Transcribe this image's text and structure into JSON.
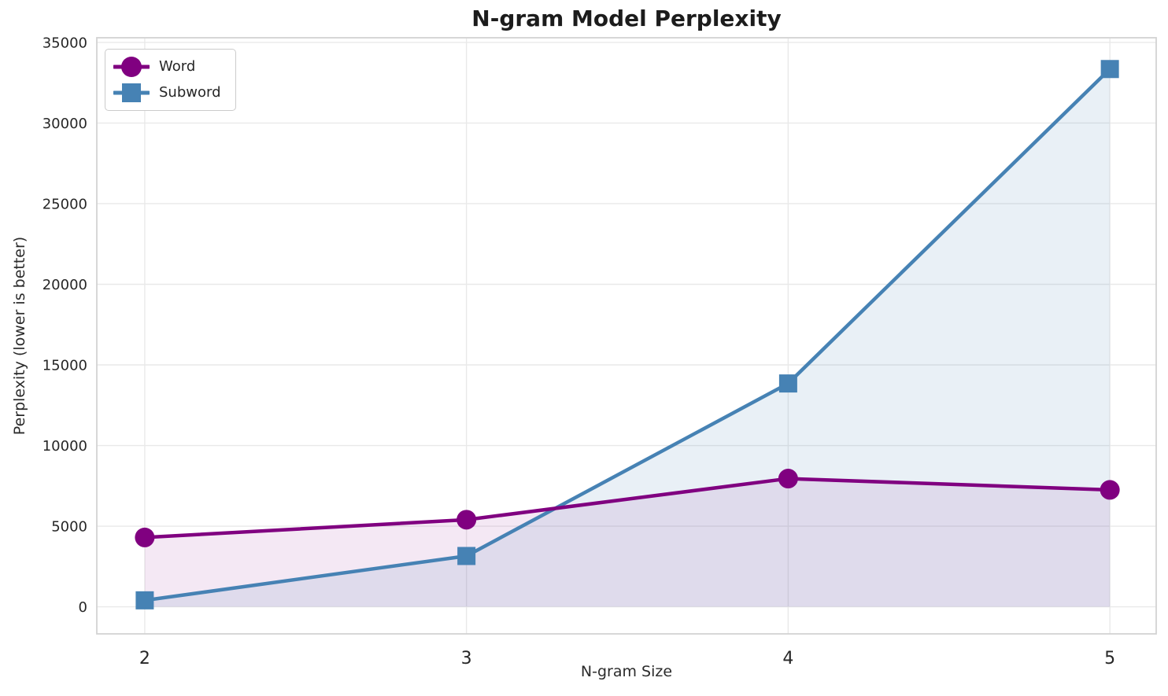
{
  "chart_data": {
    "type": "line",
    "title": "N-gram Model Perplexity",
    "xlabel": "N-gram Size",
    "ylabel": "Perplexity (lower is better)",
    "x": [
      2,
      3,
      4,
      5
    ],
    "x_tick_labels": [
      "2",
      "3",
      "4",
      "5"
    ],
    "y_ticks": [
      0,
      5000,
      10000,
      15000,
      20000,
      25000,
      30000,
      35000
    ],
    "y_tick_labels": [
      "0",
      "5000",
      "10000",
      "15000",
      "20000",
      "25000",
      "30000",
      "35000"
    ],
    "series": [
      {
        "name": "Word",
        "marker": "circle",
        "color": "#800080",
        "fill_to_zero": true,
        "fill_opacity": 0.09,
        "values": [
          4300,
          5400,
          7950,
          7250
        ]
      },
      {
        "name": "Subword",
        "marker": "square",
        "color": "#4682B4",
        "fill_to_zero": true,
        "fill_opacity": 0.12,
        "values": [
          400,
          3150,
          13850,
          33350
        ]
      }
    ],
    "xlim": [
      1.851,
      5.144
    ],
    "ylim": [
      -1680,
      35290
    ],
    "grid": true,
    "legend_position": "upper left",
    "background": "#FFFFFF",
    "colors": {
      "grid": "#E9E9E9",
      "spine": "#D3D3D3",
      "tick_label": "#262626",
      "title": "#1C1C1C"
    }
  }
}
